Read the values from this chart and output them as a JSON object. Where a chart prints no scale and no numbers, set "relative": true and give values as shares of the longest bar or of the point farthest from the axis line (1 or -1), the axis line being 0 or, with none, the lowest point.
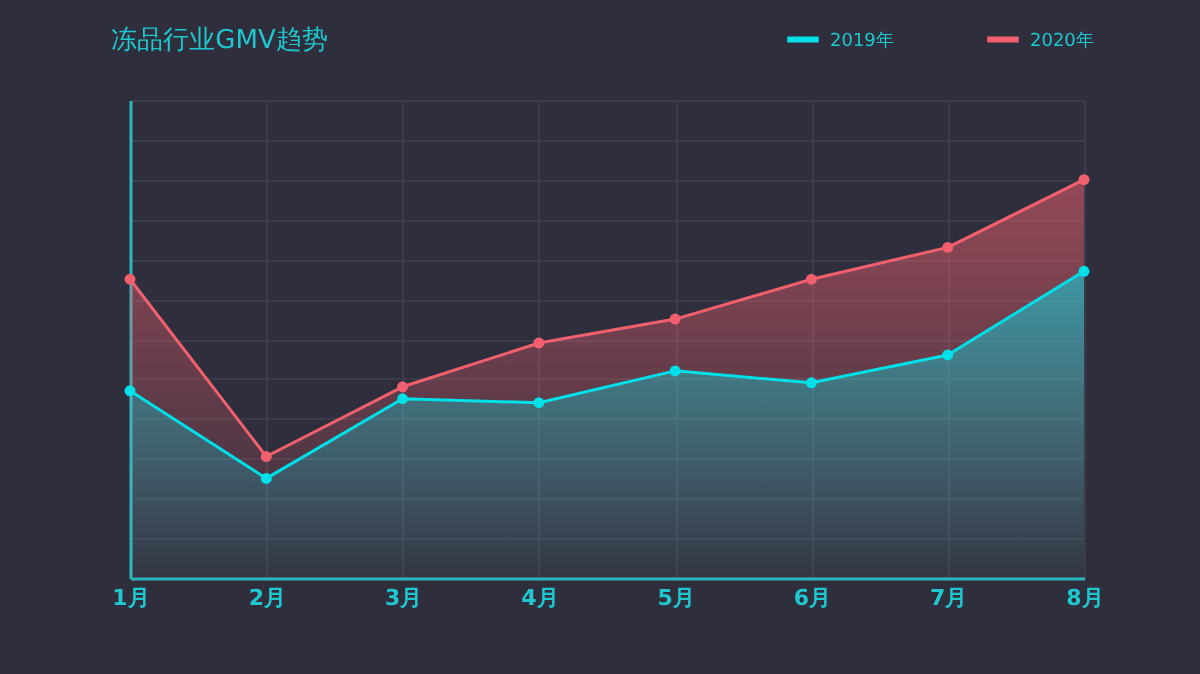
{
  "chart_data": {
    "type": "area",
    "title": "冻品行业GMV趋势",
    "categories": [
      "1月",
      "2月",
      "3月",
      "4月",
      "5月",
      "6月",
      "7月",
      "8月"
    ],
    "relative": true,
    "grid": true,
    "legend": "top right",
    "marker": "circle",
    "line_style": "solid",
    "series": [
      {
        "name": "2019年",
        "color": "#00e0e8",
        "values": [
          0.47,
          0.25,
          0.45,
          0.44,
          0.52,
          0.49,
          0.56,
          0.77
        ]
      },
      {
        "name": "2020年",
        "color": "#f0606e",
        "values": [
          0.75,
          0.305,
          0.48,
          0.59,
          0.65,
          0.75,
          0.83,
          1
        ]
      }
    ]
  }
}
